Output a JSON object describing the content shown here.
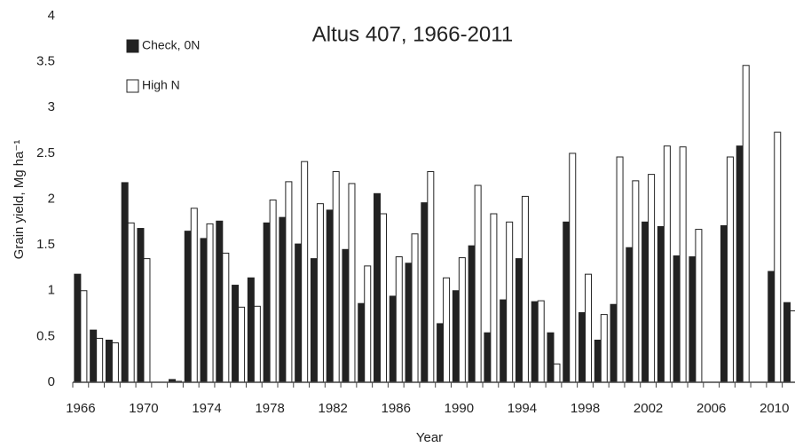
{
  "chart_data": {
    "type": "bar",
    "title": "Altus 407, 1966-2011",
    "xlabel": "Year",
    "ylabel": "Grain yield, Mg ha⁻¹",
    "categories": [
      "1966",
      null,
      null,
      null,
      "1970",
      null,
      null,
      null,
      "1974",
      null,
      null,
      null,
      "1978",
      null,
      null,
      null,
      "1982",
      null,
      null,
      null,
      "1986",
      null,
      null,
      null,
      "1990",
      null,
      null,
      null,
      "1994",
      null,
      null,
      null,
      "1998",
      null,
      null,
      null,
      "2002",
      null,
      null,
      null,
      "2006",
      null,
      null,
      null,
      "2010",
      null
    ],
    "series": [
      {
        "name": "Check, 0N",
        "color": "#222222",
        "values": [
          1.18,
          0.57,
          0.46,
          2.18,
          1.68,
          null,
          0.03,
          1.65,
          1.57,
          1.76,
          1.06,
          1.14,
          1.74,
          1.8,
          1.51,
          1.35,
          1.88,
          1.45,
          0.86,
          2.06,
          0.94,
          1.3,
          1.96,
          0.64,
          1.0,
          1.49,
          0.54,
          0.9,
          1.35,
          0.88,
          0.54,
          1.75,
          0.76,
          0.46,
          0.85,
          1.47,
          1.75,
          1.7,
          1.38,
          1.37,
          null,
          1.71,
          2.58,
          null,
          1.21,
          0.87
        ]
      },
      {
        "name": "High N",
        "color": "#ffffff",
        "values": [
          1.0,
          0.48,
          0.43,
          1.74,
          1.35,
          null,
          0.01,
          1.9,
          1.73,
          1.41,
          0.82,
          0.83,
          1.99,
          2.19,
          2.41,
          1.95,
          2.3,
          2.17,
          1.27,
          1.84,
          1.37,
          1.62,
          2.3,
          1.14,
          1.36,
          2.15,
          1.84,
          1.75,
          2.03,
          0.89,
          0.2,
          2.5,
          1.18,
          0.74,
          2.46,
          2.2,
          2.27,
          2.58,
          2.57,
          1.67,
          null,
          2.46,
          3.46,
          null,
          2.73,
          0.78
        ]
      }
    ],
    "ylim": [
      0,
      4
    ],
    "yticks": [
      0,
      0.5,
      1,
      1.5,
      2,
      2.5,
      3,
      3.5,
      4
    ],
    "grid": false
  }
}
